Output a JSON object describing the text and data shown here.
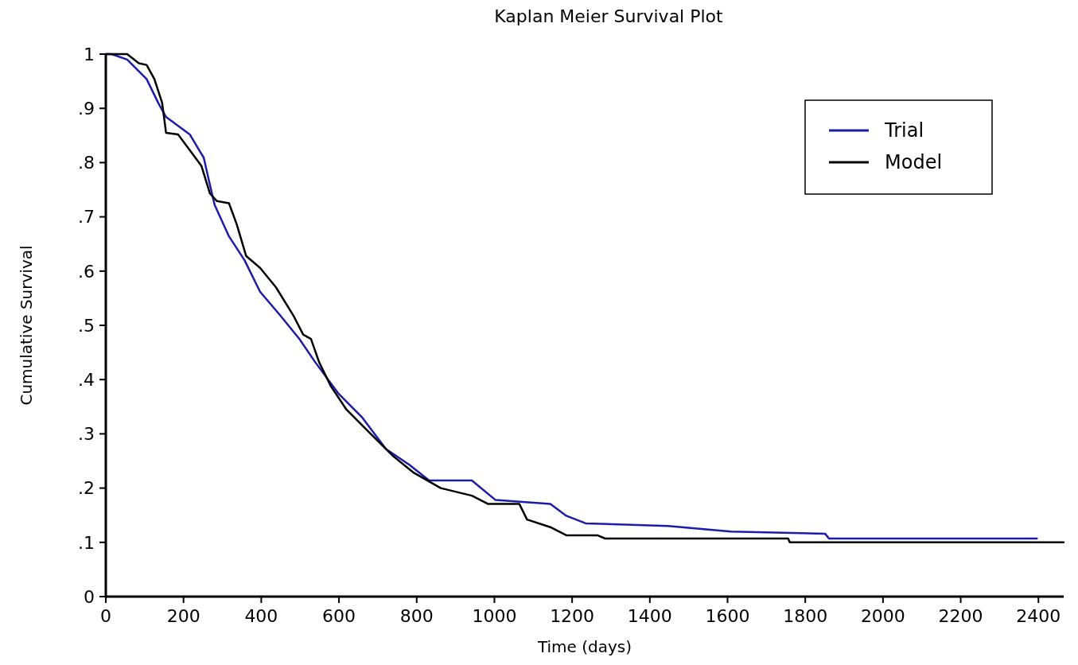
{
  "chart_data": {
    "type": "line",
    "title": "Kaplan Meier Survival Plot",
    "xlabel": "Time (days)",
    "ylabel": "Cumulative Survival",
    "xlim": [
      0,
      2465
    ],
    "ylim": [
      0,
      1
    ],
    "xticks": [
      0,
      200,
      400,
      600,
      800,
      1000,
      1200,
      1400,
      1600,
      1800,
      2000,
      2200,
      2400
    ],
    "yticks": [
      0,
      {
        "value": 0.1,
        "label": ".1"
      },
      {
        "value": 0.2,
        "label": ".2"
      },
      {
        "value": 0.3,
        "label": ".3"
      },
      {
        "value": 0.4,
        "label": ".4"
      },
      {
        "value": 0.5,
        "label": ".5"
      },
      {
        "value": 0.6,
        "label": ".6"
      },
      {
        "value": 0.7,
        "label": ".7"
      },
      {
        "value": 0.8,
        "label": ".8"
      },
      {
        "value": 0.9,
        "label": ".9"
      },
      1
    ],
    "grid": false,
    "legend": "top right",
    "marker": "none",
    "line_style": "solid",
    "series": [
      {
        "name": "Trial",
        "color": "#1c1ca8",
        "x": [
          0,
          15,
          55,
          105,
          135,
          155,
          216,
          252,
          266,
          280,
          317,
          357,
          397,
          448,
          498,
          539,
          599,
          660,
          721,
          781,
          832,
          942,
          1003,
          1144,
          1185,
          1235,
          1447,
          1609,
          1851,
          1861,
          2396
        ],
        "values": [
          1,
          1,
          0.99,
          0.954,
          0.91,
          0.884,
          0.852,
          0.809,
          0.765,
          0.722,
          0.664,
          0.62,
          0.562,
          0.519,
          0.475,
          0.432,
          0.374,
          0.33,
          0.272,
          0.243,
          0.214,
          0.214,
          0.178,
          0.171,
          0.149,
          0.135,
          0.13,
          0.12,
          0.116,
          0.107,
          0.107
        ]
      },
      {
        "name": "Model",
        "color": "#000000",
        "x": [
          0,
          55,
          85,
          105,
          125,
          145,
          155,
          186,
          216,
          246,
          268,
          286,
          317,
          337,
          361,
          397,
          438,
          482,
          508,
          528,
          549,
          579,
          619,
          680,
          741,
          791,
          862,
          942,
          983,
          1064,
          1084,
          1144,
          1185,
          1265,
          1285,
          1756,
          1760,
          2465
        ],
        "values": [
          1,
          1,
          0.983,
          0.98,
          0.954,
          0.91,
          0.855,
          0.852,
          0.823,
          0.794,
          0.743,
          0.729,
          0.725,
          0.686,
          0.628,
          0.606,
          0.57,
          0.519,
          0.483,
          0.475,
          0.432,
          0.388,
          0.345,
          0.301,
          0.258,
          0.229,
          0.2,
          0.186,
          0.171,
          0.171,
          0.142,
          0.128,
          0.113,
          0.113,
          0.107,
          0.107,
          0.1,
          0.1
        ]
      }
    ]
  }
}
